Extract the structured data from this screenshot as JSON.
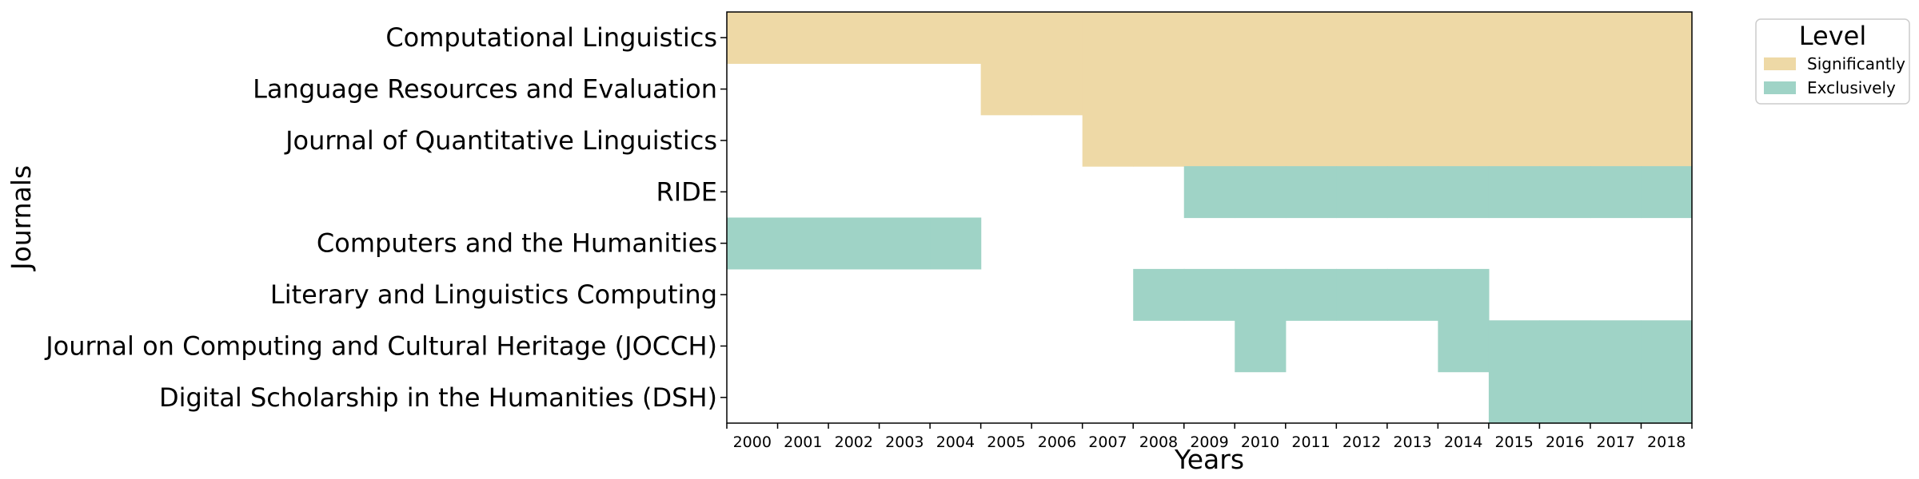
{
  "chart_data": {
    "type": "heatmap",
    "xlabel": "Years",
    "ylabel": "Journals",
    "years": [
      "2000",
      "2001",
      "2002",
      "2003",
      "2004",
      "2005",
      "2006",
      "2007",
      "2008",
      "2009",
      "2010",
      "2011",
      "2012",
      "2013",
      "2014",
      "2015",
      "2016",
      "2017",
      "2018"
    ],
    "journals": [
      "Computational Linguistics",
      "Language Resources and Evaluation",
      "Journal of Quantitative Linguistics",
      "RIDE",
      "Computers and the Humanities",
      "Literary and Linguistics Computing",
      "Journal on Computing and Cultural Heritage (JOCCH)",
      "Digital Scholarship in the Humanities (DSH)"
    ],
    "legend": {
      "title": "Level",
      "position": "top-right",
      "entries": [
        {
          "key": "S",
          "label": "Significantly",
          "color": "#eed9a6"
        },
        {
          "key": "E",
          "label": "Exclusively",
          "color": "#9fd3c6"
        }
      ]
    },
    "cells": [
      {
        "journal": "Computational Linguistics",
        "level": "S",
        "years": [
          "2000",
          "2001",
          "2002",
          "2003",
          "2004",
          "2005",
          "2006",
          "2007",
          "2008",
          "2009",
          "2010",
          "2011",
          "2012",
          "2013",
          "2014",
          "2015",
          "2016",
          "2017",
          "2018"
        ]
      },
      {
        "journal": "Language Resources and Evaluation",
        "level": "S",
        "years": [
          "2005",
          "2006",
          "2007",
          "2008",
          "2009",
          "2010",
          "2011",
          "2012",
          "2013",
          "2014",
          "2015",
          "2016",
          "2017",
          "2018"
        ]
      },
      {
        "journal": "Journal of Quantitative Linguistics",
        "level": "S",
        "years": [
          "2007",
          "2008",
          "2009",
          "2010",
          "2011",
          "2012",
          "2013",
          "2014",
          "2015",
          "2016",
          "2017",
          "2018"
        ]
      },
      {
        "journal": "RIDE",
        "level": "E",
        "years": [
          "2009",
          "2010",
          "2011",
          "2012",
          "2013",
          "2014",
          "2015",
          "2016",
          "2017",
          "2018"
        ]
      },
      {
        "journal": "Computers and the Humanities",
        "level": "E",
        "years": [
          "2000",
          "2001",
          "2002",
          "2003",
          "2004"
        ]
      },
      {
        "journal": "Literary and Linguistics Computing",
        "level": "E",
        "years": [
          "2008",
          "2009",
          "2010",
          "2011",
          "2012",
          "2013",
          "2014"
        ]
      },
      {
        "journal": "Journal on Computing and Cultural Heritage (JOCCH)",
        "level": "E",
        "years": [
          "2010",
          "2014",
          "2015",
          "2016",
          "2017",
          "2018"
        ]
      },
      {
        "journal": "Digital Scholarship in the Humanities (DSH)",
        "level": "E",
        "years": [
          "2015",
          "2016",
          "2017",
          "2018"
        ]
      }
    ]
  }
}
